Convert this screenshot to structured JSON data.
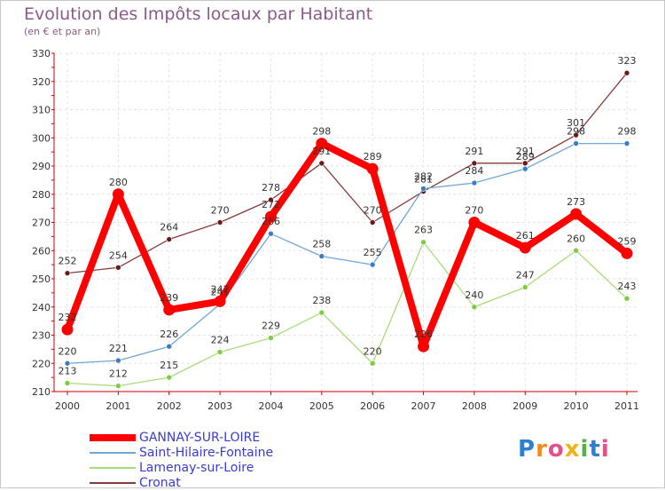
{
  "chart_data": {
    "type": "line",
    "title": "Evolution des Impôts locaux par Habitant",
    "subtitle": "(en € et par an)",
    "xlabel": "",
    "ylabel": "",
    "categories": [
      "2000",
      "2001",
      "2002",
      "2003",
      "2004",
      "2005",
      "2006",
      "2007",
      "2008",
      "2009",
      "2010",
      "2011"
    ],
    "ylim": [
      210,
      330
    ],
    "yticks": [
      210,
      220,
      230,
      240,
      250,
      260,
      270,
      280,
      290,
      300,
      310,
      320,
      330
    ],
    "grid": true,
    "legend_position": "bottom-left",
    "series": [
      {
        "name": "GANNAY-SUR-LOIRE",
        "color": "#ff0000",
        "marker_color": "#ff0000",
        "width": "thick",
        "values": [
          232,
          280,
          239,
          242,
          272,
          298,
          289,
          226,
          270,
          261,
          273,
          259
        ]
      },
      {
        "name": "Saint-Hilaire-Fontaine",
        "color": "#6fa7d6",
        "marker_color": "#3a7dc0",
        "width": "thin",
        "values": [
          220,
          221,
          226,
          241,
          266,
          258,
          255,
          282,
          284,
          289,
          298,
          298
        ]
      },
      {
        "name": "Lamenay-sur-Loire",
        "color": "#a8dc78",
        "marker_color": "#7ccc3c",
        "width": "thin",
        "values": [
          213,
          212,
          215,
          224,
          229,
          238,
          220,
          263,
          240,
          247,
          260,
          243
        ]
      },
      {
        "name": "Cronat",
        "color": "#8b3a3a",
        "marker_color": "#6a1a1a",
        "width": "thin",
        "values": [
          252,
          254,
          264,
          270,
          278,
          291,
          270,
          281,
          291,
          291,
          301,
          323
        ]
      }
    ],
    "data_labels": [
      [
        "232",
        "280",
        "239",
        "242",
        "272",
        "298",
        "289",
        "226",
        "270",
        "261",
        "273",
        "259"
      ],
      [
        "220",
        "221",
        "226",
        "241",
        "266",
        "258",
        "255",
        "282",
        "284",
        "289",
        "298",
        "298"
      ],
      [
        "213",
        "212",
        "215",
        "224",
        "229",
        "238",
        "220",
        "263",
        "240",
        "247",
        "260",
        "243"
      ],
      [
        "252",
        "254",
        "264",
        "270",
        "278",
        "291",
        "270",
        "281",
        "291",
        "291",
        "301",
        "323"
      ]
    ]
  },
  "branding": {
    "logo_text": "Proxiti",
    "logo_colors": [
      "#2e7fd0",
      "#f08c1e",
      "#e84f8a",
      "#f0b418",
      "#55b045",
      "#2e7fd0",
      "#e84f8a"
    ]
  }
}
